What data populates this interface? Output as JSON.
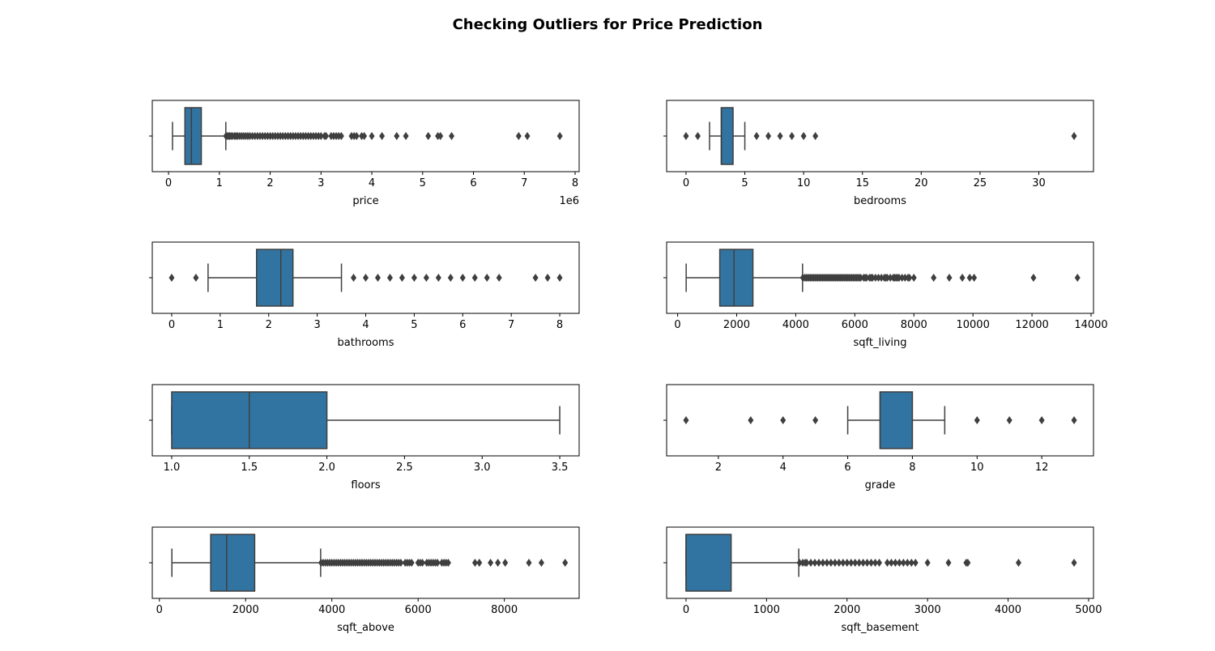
{
  "figure": {
    "title": "Checking Outliers for Price Prediction"
  },
  "style": {
    "box_fill": "#3274a1",
    "line_color": "#3f3f3f",
    "frame_color": "#000000",
    "orientation": "horizontal"
  },
  "chart_data": [
    {
      "type": "box",
      "xlabel": "price",
      "offset_label": "1e6",
      "xlim": [
        -320000,
        8080000
      ],
      "ticks": [
        0,
        1000000,
        2000000,
        3000000,
        4000000,
        5000000,
        6000000,
        7000000,
        8000000
      ],
      "tick_labels": [
        "0",
        "1",
        "2",
        "3",
        "4",
        "5",
        "6",
        "7",
        "8"
      ],
      "whisker_low": 78000,
      "q1": 322000,
      "median": 450000,
      "q3": 645000,
      "whisker_high": 1127000,
      "outliers": [
        1130000,
        1150000,
        1180000,
        1200000,
        1230000,
        1260000,
        1300000,
        1330000,
        1360000,
        1400000,
        1440000,
        1480000,
        1520000,
        1560000,
        1600000,
        1650000,
        1700000,
        1750000,
        1800000,
        1850000,
        1900000,
        1950000,
        2000000,
        2050000,
        2100000,
        2150000,
        2200000,
        2250000,
        2300000,
        2350000,
        2400000,
        2450000,
        2500000,
        2550000,
        2600000,
        2650000,
        2700000,
        2750000,
        2800000,
        2850000,
        2900000,
        2950000,
        3000000,
        3070000,
        3100000,
        3200000,
        3250000,
        3300000,
        3350000,
        3400000,
        3600000,
        3650000,
        3700000,
        3800000,
        3850000,
        4000000,
        4200000,
        4490000,
        4670000,
        5110000,
        5300000,
        5350000,
        5570000,
        6890000,
        7060000,
        7700000
      ]
    },
    {
      "type": "box",
      "xlabel": "bedrooms",
      "offset_label": "",
      "xlim": [
        -1.65,
        34.65
      ],
      "ticks": [
        0,
        5,
        10,
        15,
        20,
        25,
        30
      ],
      "tick_labels": [
        "0",
        "5",
        "10",
        "15",
        "20",
        "25",
        "30"
      ],
      "whisker_low": 2,
      "q1": 3,
      "median": 3,
      "q3": 4,
      "whisker_high": 5,
      "outliers": [
        0,
        1,
        6,
        7,
        8,
        9,
        10,
        11,
        33
      ]
    },
    {
      "type": "box",
      "xlabel": "bathrooms",
      "offset_label": "",
      "xlim": [
        -0.4,
        8.4
      ],
      "ticks": [
        0,
        1,
        2,
        3,
        4,
        5,
        6,
        7,
        8
      ],
      "tick_labels": [
        "0",
        "1",
        "2",
        "3",
        "4",
        "5",
        "6",
        "7",
        "8"
      ],
      "whisker_low": 0.75,
      "q1": 1.75,
      "median": 2.25,
      "q3": 2.5,
      "whisker_high": 3.5,
      "outliers": [
        0,
        0.5,
        3.75,
        4,
        4.25,
        4.5,
        4.75,
        5,
        5.25,
        5.5,
        5.75,
        6,
        6.25,
        6.5,
        6.75,
        7.5,
        7.75,
        8
      ]
    },
    {
      "type": "box",
      "xlabel": "sqft_living",
      "offset_label": "",
      "xlim": [
        -372,
        14082
      ],
      "ticks": [
        0,
        2000,
        4000,
        6000,
        8000,
        10000,
        12000,
        14000
      ],
      "tick_labels": [
        "0",
        "2000",
        "4000",
        "6000",
        "8000",
        "10000",
        "12000",
        "14000"
      ],
      "whisker_low": 290,
      "q1": 1427,
      "median": 1910,
      "q3": 2550,
      "whisker_high": 4230,
      "outliers": [
        4240,
        4300,
        4350,
        4400,
        4450,
        4500,
        4550,
        4600,
        4650,
        4700,
        4750,
        4800,
        4850,
        4900,
        4950,
        5000,
        5050,
        5100,
        5150,
        5200,
        5250,
        5300,
        5350,
        5400,
        5450,
        5500,
        5550,
        5600,
        5650,
        5700,
        5750,
        5800,
        5850,
        5900,
        5950,
        6000,
        6050,
        6100,
        6150,
        6200,
        6300,
        6350,
        6400,
        6500,
        6550,
        6600,
        6700,
        6800,
        6900,
        7000,
        7050,
        7100,
        7200,
        7300,
        7350,
        7400,
        7450,
        7500,
        7600,
        7700,
        7800,
        7850,
        8000,
        8670,
        9200,
        9640,
        9890,
        10040,
        12050,
        13540
      ]
    },
    {
      "type": "box",
      "xlabel": "floors",
      "offset_label": "",
      "xlim": [
        0.875,
        3.625
      ],
      "ticks": [
        1.0,
        1.5,
        2.0,
        2.5,
        3.0,
        3.5
      ],
      "tick_labels": [
        "1.0",
        "1.5",
        "2.0",
        "2.5",
        "3.0",
        "3.5"
      ],
      "whisker_low": 1.0,
      "q1": 1.0,
      "median": 1.5,
      "q3": 2.0,
      "whisker_high": 3.5,
      "outliers": []
    },
    {
      "type": "box",
      "xlabel": "grade",
      "offset_label": "",
      "xlim": [
        0.4,
        13.6
      ],
      "ticks": [
        2,
        4,
        6,
        8,
        10,
        12
      ],
      "tick_labels": [
        "2",
        "4",
        "6",
        "8",
        "10",
        "12"
      ],
      "whisker_low": 6,
      "q1": 7,
      "median": 7,
      "q3": 8,
      "whisker_high": 9,
      "outliers": [
        1,
        3,
        4,
        5,
        10,
        11,
        12,
        13
      ]
    },
    {
      "type": "box",
      "xlabel": "sqft_above",
      "offset_label": "",
      "xlim": [
        -165,
        9735
      ],
      "ticks": [
        0,
        2000,
        4000,
        6000,
        8000
      ],
      "tick_labels": [
        "0",
        "2000",
        "4000",
        "6000",
        "8000"
      ],
      "whisker_low": 290,
      "q1": 1190,
      "median": 1560,
      "q3": 2210,
      "whisker_high": 3740,
      "outliers": [
        3750,
        3800,
        3850,
        3900,
        3950,
        4000,
        4050,
        4100,
        4150,
        4200,
        4250,
        4300,
        4350,
        4400,
        4450,
        4500,
        4550,
        4600,
        4650,
        4700,
        4750,
        4800,
        4850,
        4900,
        4950,
        5000,
        5050,
        5100,
        5150,
        5200,
        5250,
        5300,
        5350,
        5400,
        5450,
        5500,
        5550,
        5600,
        5700,
        5750,
        5800,
        5850,
        6000,
        6050,
        6100,
        6200,
        6250,
        6300,
        6350,
        6400,
        6450,
        6550,
        6600,
        6650,
        6700,
        7320,
        7420,
        7680,
        7850,
        8020,
        8570,
        8860,
        9410
      ]
    },
    {
      "type": "box",
      "xlabel": "sqft_basement",
      "offset_label": "",
      "xlim": [
        -241,
        5061
      ],
      "ticks": [
        0,
        1000,
        2000,
        3000,
        4000,
        5000
      ],
      "tick_labels": [
        "0",
        "1000",
        "2000",
        "3000",
        "4000",
        "5000"
      ],
      "whisker_low": 0,
      "q1": 0,
      "median": 0,
      "q3": 560,
      "whisker_high": 1400,
      "outliers": [
        1410,
        1450,
        1480,
        1500,
        1550,
        1600,
        1650,
        1700,
        1750,
        1800,
        1850,
        1900,
        1950,
        2000,
        2050,
        2100,
        2150,
        2200,
        2250,
        2300,
        2350,
        2400,
        2500,
        2550,
        2600,
        2650,
        2700,
        2750,
        2800,
        2850,
        3000,
        3260,
        3480,
        3500,
        4130,
        4820
      ]
    }
  ]
}
